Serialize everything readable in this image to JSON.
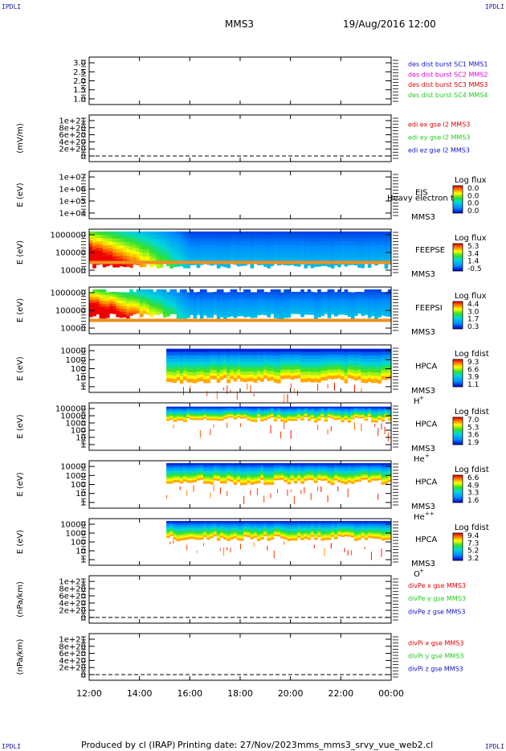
{
  "corners": {
    "tl": "IPDLI",
    "tr": "IPDLI",
    "bl": "IPDLI",
    "br": "IPDLI"
  },
  "header": {
    "spacecraft": "MMS3",
    "datetime": "19/Aug/2016 12:00"
  },
  "footer": {
    "producer": "Produced by cl (IRAP)",
    "printing": "Printing date: 27/Nov/2023",
    "script": "mms_mms3_srvy_vue_web2.cl"
  },
  "x_ticks": [
    "12:00",
    "14:00",
    "16:00",
    "18:00",
    "20:00",
    "22:00",
    "00:00"
  ],
  "colors": {
    "red": "#dd0000",
    "green": "#22cc22",
    "blue": "#1111cc",
    "magenta": "#dd00dd",
    "axis": "#000000"
  },
  "chart_data": [
    {
      "id": "p1",
      "type": "line",
      "ylabel": "",
      "y_ticks": [
        "3.0",
        "2.5",
        "2.0",
        "1.5",
        "1.0"
      ],
      "ylim": [
        0.8,
        3.2
      ],
      "legend": [
        {
          "text": "des dist burst SC1 MMS1",
          "color": "#1111cc"
        },
        {
          "text": "des dist burst SC2 MMS2",
          "color": "#dd00dd"
        },
        {
          "text": "des dist burst SC3 MMS3",
          "color": "#dd0000"
        },
        {
          "text": "des dist burst SC4 MMS4",
          "color": "#22cc22"
        }
      ]
    },
    {
      "id": "p2",
      "type": "line",
      "ylabel": "(mV/m)",
      "y_ticks": [
        "1e+21",
        "8e+20",
        "6e+20",
        "4e+20",
        "2e+20",
        "0"
      ],
      "ylim": [
        0,
        1e+21
      ],
      "legend": [
        {
          "text": "edi ex gse l2 MMS3",
          "color": "#dd0000"
        },
        {
          "text": "edi ey gse l2 MMS3",
          "color": "#22cc22"
        },
        {
          "text": "edi ez gse l2 MMS3",
          "color": "#1111cc"
        }
      ]
    },
    {
      "id": "p3",
      "type": "heatmap",
      "ylabel": "E (eV)",
      "y_ticks": [
        "1e+07",
        "1e+06",
        "1e+05",
        "1e+04"
      ],
      "scale": "log",
      "instrument": "EIS",
      "sc": "MMS3",
      "overlay": "Heavy electron to",
      "cbar": {
        "title": "Log flux",
        "ticks": [
          "0.0",
          "0.0",
          "0.0",
          "0.0"
        ]
      }
    },
    {
      "id": "p4",
      "type": "heatmap",
      "ylabel": "E (eV)",
      "y_ticks": [
        "1000000",
        "100000",
        "10000"
      ],
      "scale": "log",
      "instrument": "FEEPSE",
      "sc": "MMS3",
      "cbar": {
        "title": "Log flux",
        "ticks": [
          "5.3",
          "3.4",
          "1.4",
          "-0.5"
        ]
      }
    },
    {
      "id": "p5",
      "type": "heatmap",
      "ylabel": "E (eV)",
      "y_ticks": [
        "1000000",
        "100000",
        "10000"
      ],
      "scale": "log",
      "instrument": "FEEPSI",
      "sc": "MMS3",
      "cbar": {
        "title": "Log flux",
        "ticks": [
          "4.4",
          "3.0",
          "1.7",
          "0.3"
        ]
      }
    },
    {
      "id": "p6",
      "type": "heatmap",
      "ylabel": "E (eV)",
      "y_ticks": [
        "10000",
        "1000",
        "100",
        "10",
        "1"
      ],
      "scale": "log",
      "instrument": "HPCA",
      "sc": "MMS3",
      "species": "H",
      "charge": "+",
      "cbar": {
        "title": "Log fdist",
        "ticks": [
          "9.3",
          "6.6",
          "3.9",
          "1.1"
        ]
      }
    },
    {
      "id": "p7",
      "type": "heatmap",
      "ylabel": "E (eV)",
      "y_ticks": [
        "100000",
        "10000",
        "1000",
        "100",
        "10",
        "1"
      ],
      "scale": "log",
      "instrument": "HPCA",
      "sc": "MMS3",
      "species": "He",
      "charge": "+",
      "cbar": {
        "title": "Log fdist",
        "ticks": [
          "7.0",
          "5.3",
          "3.6",
          "1.9"
        ]
      }
    },
    {
      "id": "p8",
      "type": "heatmap",
      "ylabel": "E (eV)",
      "y_ticks": [
        "10000",
        "1000",
        "100",
        "10",
        "1"
      ],
      "scale": "log",
      "instrument": "HPCA",
      "sc": "MMS3",
      "species": "He",
      "charge": "++",
      "cbar": {
        "title": "Log fdist",
        "ticks": [
          "6.6",
          "4.9",
          "3.3",
          "1.6"
        ]
      }
    },
    {
      "id": "p9",
      "type": "heatmap",
      "ylabel": "E (eV)",
      "y_ticks": [
        "10000",
        "1000",
        "100",
        "10",
        "1"
      ],
      "scale": "log",
      "instrument": "HPCA",
      "sc": "MMS3",
      "species": "O",
      "charge": "+",
      "cbar": {
        "title": "Log fdist",
        "ticks": [
          "9.4",
          "7.3",
          "5.2",
          "3.2"
        ]
      }
    },
    {
      "id": "p10",
      "type": "line",
      "ylabel": "(nPa/km)",
      "y_ticks": [
        "1e+21",
        "8e+20",
        "6e+20",
        "4e+20",
        "2e+20",
        "0"
      ],
      "ylim": [
        0,
        1e+21
      ],
      "legend": [
        {
          "text": "divPe x gse MMS3",
          "color": "#dd0000"
        },
        {
          "text": "divPe y gse MMS3",
          "color": "#22cc22"
        },
        {
          "text": "divPe z gse MMS3",
          "color": "#1111cc"
        }
      ]
    },
    {
      "id": "p11",
      "type": "line",
      "ylabel": "(nPa/km)",
      "y_ticks": [
        "1e+21",
        "8e+20",
        "6e+20",
        "4e+20",
        "2e+20",
        "0"
      ],
      "ylim": [
        0,
        1e+21
      ],
      "legend": [
        {
          "text": "divPi x gse MMS3",
          "color": "#dd0000"
        },
        {
          "text": "divPi y gse MMS3",
          "color": "#22cc22"
        },
        {
          "text": "divPi z gse MMS3",
          "color": "#1111cc"
        }
      ]
    }
  ]
}
